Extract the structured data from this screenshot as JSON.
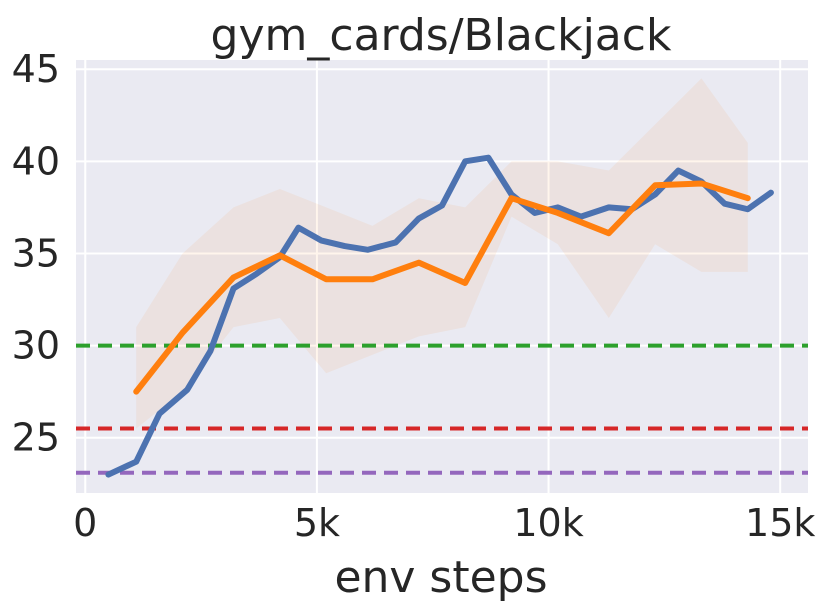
{
  "chart_data": {
    "type": "line",
    "title": "gym_cards/Blackjack",
    "xlabel": "env steps",
    "ylabel": "",
    "xlim": [
      -200,
      15600
    ],
    "ylim": [
      22,
      45.5
    ],
    "grid": true,
    "xticks": [
      {
        "value": 0,
        "label": "0"
      },
      {
        "value": 5000,
        "label": "5k"
      },
      {
        "value": 10000,
        "label": "10k"
      },
      {
        "value": 15000,
        "label": "15k"
      }
    ],
    "yticks": [
      {
        "value": 25,
        "label": "25"
      },
      {
        "value": 30,
        "label": "30"
      },
      {
        "value": 35,
        "label": "35"
      },
      {
        "value": 40,
        "label": "40"
      },
      {
        "value": 45,
        "label": "45"
      }
    ],
    "series": [
      {
        "color": "#4c72b0",
        "x": [
          500,
          1100,
          1600,
          2200,
          2700,
          3200,
          3700,
          4200,
          4600,
          5100,
          5600,
          6100,
          6700,
          7200,
          7700,
          8200,
          8700,
          9200,
          9700,
          10200,
          10700,
          11300,
          11800,
          12300,
          12800,
          13300,
          13800,
          14300,
          14800
        ],
        "values": [
          23.0,
          23.7,
          26.3,
          27.6,
          29.7,
          33.1,
          33.9,
          34.8,
          36.4,
          35.7,
          35.4,
          35.2,
          35.6,
          36.9,
          37.6,
          40.0,
          40.2,
          38.2,
          37.2,
          37.5,
          37.0,
          37.5,
          37.4,
          38.2,
          39.5,
          38.9,
          37.7,
          37.4,
          38.3
        ]
      },
      {
        "color": "#ff7f0e",
        "x": [
          1100,
          2100,
          3200,
          4200,
          5200,
          6200,
          7200,
          8200,
          9200,
          10200,
          11300,
          12300,
          13300,
          14300
        ],
        "values": [
          27.5,
          30.7,
          33.7,
          34.9,
          33.6,
          33.6,
          34.5,
          33.4,
          38.0,
          37.2,
          36.1,
          38.7,
          38.8,
          38.0
        ],
        "band_upper": [
          31.0,
          35.0,
          37.5,
          38.5,
          37.5,
          36.5,
          38.0,
          37.5,
          40.0,
          40.0,
          39.5,
          42.0,
          44.5,
          41.0
        ],
        "band_lower": [
          25.5,
          27.5,
          31.0,
          31.5,
          28.5,
          29.5,
          30.5,
          31.0,
          37.0,
          35.5,
          31.5,
          35.5,
          34.0,
          34.0
        ]
      }
    ],
    "hlines": [
      {
        "value": 30,
        "color": "#2ca02c",
        "style": "dashed"
      },
      {
        "value": 25.5,
        "color": "#d62728",
        "style": "dashed"
      },
      {
        "value": 23.1,
        "color": "#9467bd",
        "style": "dashed"
      }
    ]
  }
}
